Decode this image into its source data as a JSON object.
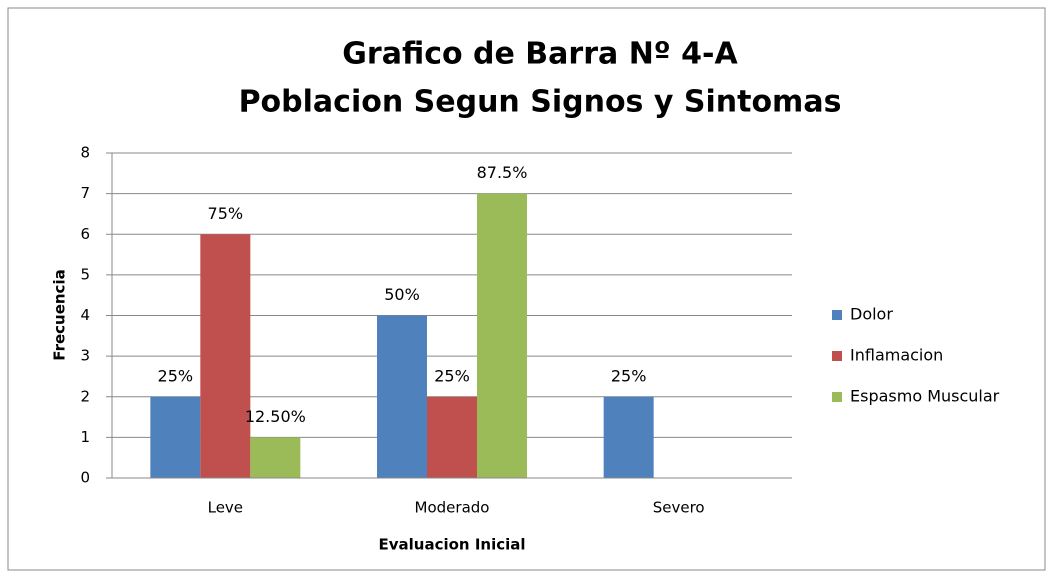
{
  "chart_data": {
    "type": "bar",
    "title": [
      "Grafico de Barra Nº 4-A",
      "Poblacion Segun Signos y Sintomas"
    ],
    "x_label": "Evaluacion Inicial",
    "y_label": "Frecuencia",
    "categories": [
      "Leve",
      "Moderado",
      "Severo"
    ],
    "series": [
      {
        "name": "Dolor",
        "color": "#4f81bd",
        "values": [
          2,
          4,
          2
        ],
        "percent_labels": [
          "25%",
          "50%",
          "25%"
        ]
      },
      {
        "name": "Inflamacion",
        "color": "#c0504d",
        "values": [
          6,
          2,
          null
        ],
        "percent_labels": [
          "75%",
          "25%",
          null
        ]
      },
      {
        "name": "Espasmo Muscular",
        "color": "#9bbb59",
        "values": [
          1,
          7,
          null
        ],
        "percent_labels": [
          "12.50%",
          "87.5%",
          null
        ]
      }
    ],
    "ylim": [
      0,
      8
    ],
    "yticks": [
      0,
      1,
      2,
      3,
      4,
      5,
      6,
      7,
      8
    ],
    "grid": true,
    "legend": "right"
  }
}
